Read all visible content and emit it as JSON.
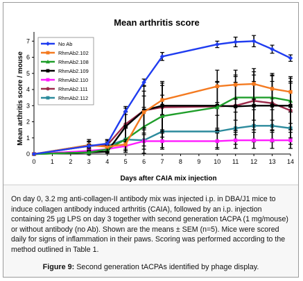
{
  "chart_data": {
    "type": "line",
    "title": "Mean arthritis score",
    "xlabel": "Days after CAIA mix injection",
    "ylabel": "Mean arthritis score / mouse",
    "x": [
      0,
      3,
      4,
      5,
      6,
      7,
      10,
      11,
      12,
      13,
      14
    ],
    "x_ticks": [
      "0",
      "1",
      "2",
      "3",
      "4",
      "5",
      "6",
      "7",
      "8",
      "9",
      "10",
      "11",
      "12",
      "13",
      "14"
    ],
    "y_ticks": [
      "0",
      "1",
      "2",
      "3",
      "4",
      "5",
      "6",
      "7"
    ],
    "xlim": [
      0,
      14
    ],
    "ylim": [
      0,
      7.4
    ],
    "grid": false,
    "legend_position": "top-left",
    "series": [
      {
        "name": "No Ab",
        "color": "#1f3cf0",
        "marker": "diamond",
        "values": [
          0,
          0.5,
          0.65,
          2.65,
          4.45,
          6.05,
          6.8,
          6.95,
          7.0,
          6.5,
          5.95
        ],
        "errors": [
          0,
          0.1,
          0.1,
          0.2,
          0.2,
          0.25,
          0.2,
          0.3,
          0.35,
          0.25,
          0.2
        ]
      },
      {
        "name": "RhmAb2.102",
        "color": "#f47a20",
        "marker": "square",
        "values": [
          0,
          0.55,
          0.45,
          0.6,
          2.6,
          3.35,
          4.2,
          4.3,
          4.35,
          4.05,
          3.85
        ],
        "errors": [
          0,
          0.2,
          0.3,
          0.3,
          1.0,
          0.9,
          1.0,
          0.9,
          0.95,
          0.95,
          0.95
        ]
      },
      {
        "name": "RhmAb2.108",
        "color": "#1f9e2a",
        "marker": "triangle",
        "values": [
          0,
          0.1,
          0.3,
          0.9,
          1.7,
          2.35,
          2.9,
          3.5,
          3.5,
          3.5,
          3.3
        ],
        "errors": [
          0,
          0.15,
          0.2,
          0.8,
          1.2,
          1.3,
          1.3,
          1.4,
          1.4,
          1.4,
          1.4
        ]
      },
      {
        "name": "RhmAb2.109",
        "color": "#000000",
        "marker": "square",
        "values": [
          0,
          0.1,
          0.15,
          1.7,
          2.7,
          3.0,
          3.0,
          2.95,
          3.0,
          3.0,
          3.0
        ],
        "errors": [
          0,
          0.1,
          0.15,
          0.9,
          1.5,
          1.5,
          1.5,
          1.5,
          1.5,
          1.5,
          1.5
        ]
      },
      {
        "name": "RhmAb2.110",
        "color": "#ff1aff",
        "marker": "square",
        "values": [
          0,
          0.2,
          0.3,
          0.5,
          0.8,
          0.8,
          0.8,
          0.85,
          0.85,
          0.85,
          0.85
        ],
        "errors": [
          0,
          0.1,
          0.1,
          0.3,
          0.5,
          0.5,
          0.5,
          0.5,
          0.5,
          0.5,
          0.5
        ]
      },
      {
        "name": "RhmAb2.111",
        "color": "#9b2a4a",
        "marker": "circle",
        "values": [
          0,
          0.5,
          0.55,
          1.85,
          2.7,
          2.9,
          2.95,
          3.0,
          3.3,
          3.15,
          2.7
        ],
        "errors": [
          0,
          0.3,
          0.3,
          1.1,
          1.2,
          1.5,
          1.5,
          1.8,
          1.8,
          1.7,
          1.7
        ]
      },
      {
        "name": "RhmAb2.112",
        "color": "#2b8a9c",
        "marker": "square",
        "values": [
          0,
          0.55,
          0.5,
          0.9,
          0.85,
          1.4,
          1.4,
          1.6,
          1.75,
          1.75,
          1.6
        ],
        "errors": [
          0,
          0.35,
          0.4,
          0.7,
          0.8,
          1.0,
          1.0,
          1.0,
          1.0,
          1.0,
          1.0
        ]
      }
    ]
  },
  "caption": {
    "body": "On day 0, 3.2 mg anti-collagen-II antibody mix was injected i.p. in DBA/J1 mice to induce collagen antibody induced arthritis (CAIA), followed by an i.p. injection containing 25 µg LPS on day 3 together with second generation tACPA (1 mg/mouse) or without antibody (no Ab). Shown are the means ± SEM (n=5). Mice were scored daily for signs of inflammation in their paws. Scoring was performed according to the method outlined in Table 1.",
    "figure_label": "Figure 9:",
    "figure_text": " Second generation tACPAs identified by phage display."
  }
}
